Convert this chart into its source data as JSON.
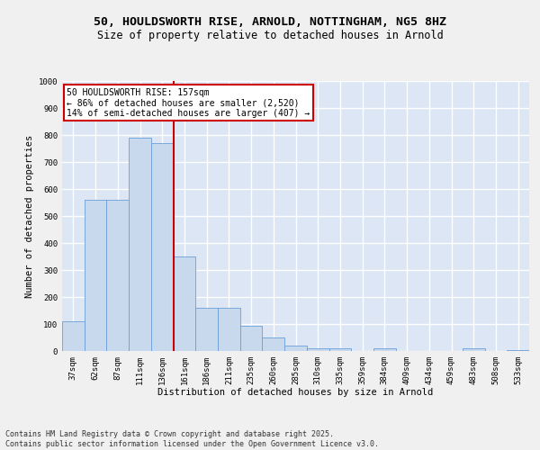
{
  "title_line1": "50, HOULDSWORTH RISE, ARNOLD, NOTTINGHAM, NG5 8HZ",
  "title_line2": "Size of property relative to detached houses in Arnold",
  "xlabel": "Distribution of detached houses by size in Arnold",
  "ylabel": "Number of detached properties",
  "categories": [
    "37sqm",
    "62sqm",
    "87sqm",
    "111sqm",
    "136sqm",
    "161sqm",
    "186sqm",
    "211sqm",
    "235sqm",
    "260sqm",
    "285sqm",
    "310sqm",
    "335sqm",
    "359sqm",
    "384sqm",
    "409sqm",
    "434sqm",
    "459sqm",
    "483sqm",
    "508sqm",
    "533sqm"
  ],
  "values": [
    110,
    560,
    560,
    790,
    770,
    350,
    160,
    160,
    95,
    50,
    20,
    10,
    10,
    0,
    10,
    0,
    0,
    0,
    10,
    0,
    5
  ],
  "bar_color": "#c8d9ee",
  "bar_edge_color": "#6a9fd8",
  "vline_x_index": 5,
  "vline_color": "#cc0000",
  "annotation_box_text": "50 HOULDSWORTH RISE: 157sqm\n← 86% of detached houses are smaller (2,520)\n14% of semi-detached houses are larger (407) →",
  "annotation_box_color": "#cc0000",
  "annotation_box_fill": "#ffffff",
  "annotation_fontsize": 7.0,
  "ylim": [
    0,
    1000
  ],
  "yticks": [
    0,
    100,
    200,
    300,
    400,
    500,
    600,
    700,
    800,
    900,
    1000
  ],
  "background_color": "#dce6f5",
  "grid_color": "#ffffff",
  "fig_background": "#f0f0f0",
  "footer_text": "Contains HM Land Registry data © Crown copyright and database right 2025.\nContains public sector information licensed under the Open Government Licence v3.0.",
  "title_fontsize": 9.5,
  "subtitle_fontsize": 8.5,
  "axis_label_fontsize": 7.5,
  "tick_fontsize": 6.5,
  "footer_fontsize": 6.0
}
